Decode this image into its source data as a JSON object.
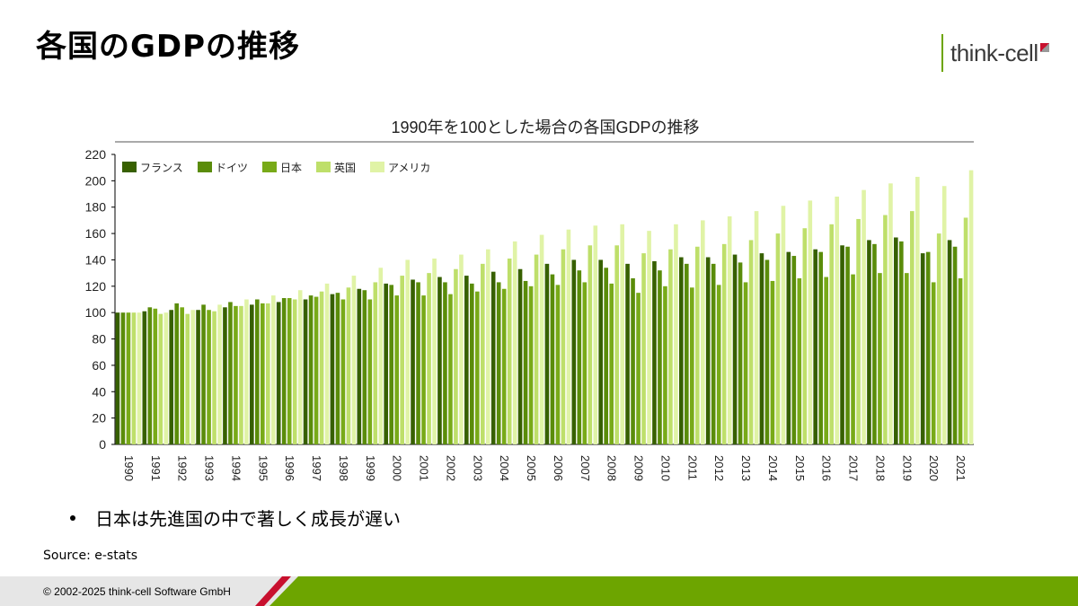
{
  "slide": {
    "title": "各国のGDPの推移",
    "logo_text": "think-cell",
    "bullet": "日本は先進国の中で著しく成長が遅い",
    "source": "Source: e-stats",
    "copyright": "© 2002-2025 think-cell Software GmbH"
  },
  "colors": {
    "brand_green": "#6da500",
    "brand_red": "#c8102e"
  },
  "chart_data": {
    "type": "bar",
    "title": "1990年を100とした場合の各国GDPの推移",
    "xlabel": "",
    "ylabel": "",
    "ylim": [
      0,
      220
    ],
    "yticks": [
      0,
      20,
      40,
      60,
      80,
      100,
      120,
      140,
      160,
      180,
      200,
      220
    ],
    "grid": false,
    "legend_position": "top-left",
    "categories": [
      "1990",
      "1991",
      "1992",
      "1993",
      "1994",
      "1995",
      "1996",
      "1997",
      "1998",
      "1999",
      "2000",
      "2001",
      "2002",
      "2003",
      "2004",
      "2005",
      "2006",
      "2007",
      "2008",
      "2009",
      "2010",
      "2011",
      "2012",
      "2013",
      "2014",
      "2015",
      "2016",
      "2017",
      "2018",
      "2019",
      "2020",
      "2021"
    ],
    "series": [
      {
        "name": "フランス",
        "color": "#376000",
        "values": [
          100,
          101,
          102,
          102,
          104,
          106,
          108,
          110,
          114,
          118,
          122,
          125,
          127,
          128,
          131,
          133,
          137,
          140,
          140,
          137,
          139,
          142,
          142,
          144,
          145,
          146,
          148,
          151,
          155,
          157,
          145,
          155
        ]
      },
      {
        "name": "ドイツ",
        "color": "#5a8c0a",
        "values": [
          100,
          104,
          107,
          106,
          108,
          110,
          111,
          113,
          115,
          117,
          121,
          123,
          123,
          122,
          123,
          124,
          129,
          132,
          134,
          126,
          132,
          137,
          137,
          138,
          140,
          143,
          146,
          150,
          152,
          154,
          146,
          150
        ]
      },
      {
        "name": "日本",
        "color": "#78aa18",
        "values": [
          100,
          103,
          104,
          102,
          105,
          107,
          111,
          112,
          110,
          110,
          113,
          113,
          114,
          116,
          118,
          120,
          121,
          123,
          122,
          115,
          120,
          119,
          121,
          123,
          124,
          126,
          127,
          129,
          130,
          130,
          123,
          126
        ]
      },
      {
        "name": "英国",
        "color": "#bedf6a",
        "values": [
          100,
          99,
          99,
          101,
          105,
          107,
          110,
          116,
          119,
          123,
          128,
          130,
          133,
          137,
          141,
          144,
          148,
          151,
          151,
          145,
          148,
          150,
          152,
          155,
          160,
          164,
          167,
          171,
          174,
          177,
          160,
          172
        ]
      },
      {
        "name": "アメリカ",
        "color": "#e0f3a6",
        "values": [
          100,
          100,
          102,
          106,
          110,
          113,
          117,
          122,
          128,
          134,
          140,
          141,
          144,
          148,
          154,
          159,
          163,
          166,
          167,
          162,
          167,
          170,
          173,
          177,
          181,
          185,
          188,
          193,
          198,
          203,
          196,
          208
        ]
      }
    ]
  }
}
